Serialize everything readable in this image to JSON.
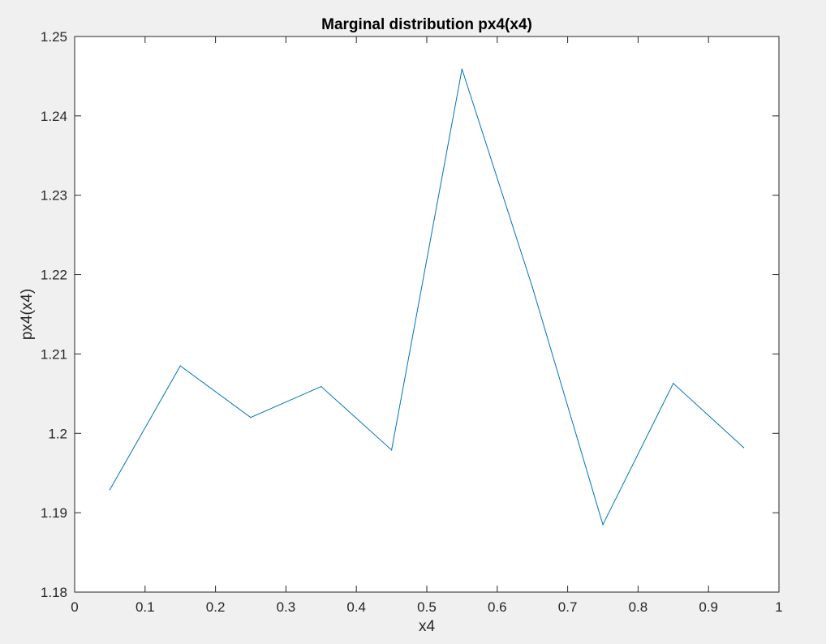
{
  "chart_data": {
    "type": "line",
    "title": "Marginal distribution px4(x4)",
    "xlabel": "x4",
    "ylabel": "px4(x4)",
    "xlim": [
      0,
      1
    ],
    "ylim": [
      1.18,
      1.25
    ],
    "xticks": [
      0,
      0.1,
      0.2,
      0.3,
      0.4,
      0.5,
      0.6,
      0.7,
      0.8,
      0.9,
      1
    ],
    "xtick_labels": [
      "0",
      "0.1",
      "0.2",
      "0.3",
      "0.4",
      "0.5",
      "0.6",
      "0.7",
      "0.8",
      "0.9",
      "1"
    ],
    "yticks": [
      1.18,
      1.19,
      1.2,
      1.21,
      1.22,
      1.23,
      1.24,
      1.25
    ],
    "ytick_labels": [
      "1.18",
      "1.19",
      "1.2",
      "1.21",
      "1.22",
      "1.23",
      "1.24",
      "1.25"
    ],
    "grid": false,
    "legend": "none",
    "series": [
      {
        "color": "#0072bd",
        "x": [
          0.05,
          0.15,
          0.25,
          0.35,
          0.45,
          0.55,
          0.65,
          0.75,
          0.85,
          0.95
        ],
        "y": [
          1.1929,
          1.2085,
          1.202,
          1.2059,
          1.1979,
          1.2459,
          1.2184,
          1.1885,
          1.2063,
          1.1982
        ]
      }
    ]
  },
  "colors": {
    "figure_background": "#f0f0f0",
    "axes_background": "#ffffff",
    "axes_edge": "#262626"
  }
}
